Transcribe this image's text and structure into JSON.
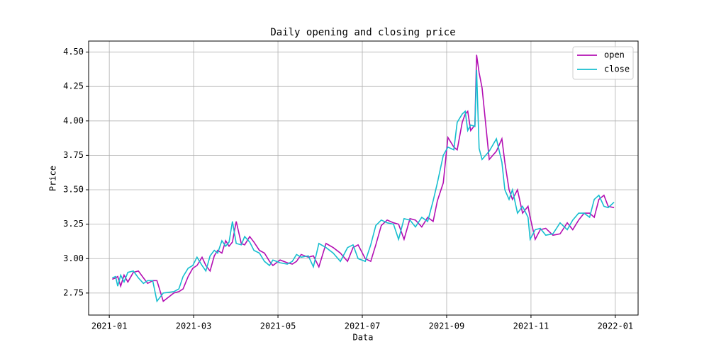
{
  "chart_data": {
    "type": "line",
    "title": "Daily opening and closing price",
    "xlabel": "Data",
    "ylabel": "Price",
    "x": [
      1.07,
      1.15,
      1.2,
      1.27,
      1.35,
      1.44,
      1.57,
      1.69,
      1.81,
      1.91,
      2.03,
      2.13,
      2.28,
      2.53,
      2.65,
      2.75,
      2.87,
      2.98,
      3.08,
      3.2,
      3.29,
      3.39,
      3.49,
      3.57,
      3.67,
      3.76,
      3.84,
      3.92,
      4.01,
      4.13,
      4.21,
      4.33,
      4.43,
      4.56,
      4.68,
      4.8,
      4.88,
      5.05,
      5.22,
      5.34,
      5.44,
      5.55,
      5.72,
      5.84,
      5.97,
      6.14,
      6.31,
      6.48,
      6.65,
      6.78,
      6.9,
      7.07,
      7.2,
      7.32,
      7.45,
      7.59,
      7.74,
      7.86,
      7.99,
      8.13,
      8.26,
      8.41,
      8.55,
      8.68,
      8.78,
      8.92,
      9.03,
      9.17,
      9.25,
      9.37,
      9.44,
      9.5,
      9.57,
      9.67,
      9.71,
      9.77,
      9.84,
      10.01,
      10.18,
      10.31,
      10.38,
      10.48,
      10.56,
      10.68,
      10.8,
      10.93,
      10.98,
      11.1,
      11.22,
      11.35,
      11.52,
      11.69,
      11.86,
      11.99,
      12.13,
      12.26,
      12.39,
      12.5,
      12.61,
      12.73,
      12.83,
      12.97
    ],
    "series": [
      {
        "name": "open",
        "color": "#b30fb3",
        "values": [
          2.85,
          2.86,
          2.87,
          2.8,
          2.88,
          2.83,
          2.9,
          2.91,
          2.86,
          2.82,
          2.84,
          2.84,
          2.69,
          2.75,
          2.76,
          2.78,
          2.87,
          2.93,
          2.95,
          3.01,
          2.95,
          2.91,
          3.02,
          3.06,
          3.04,
          3.13,
          3.09,
          3.12,
          3.27,
          3.11,
          3.1,
          3.16,
          3.12,
          3.06,
          3.04,
          2.98,
          2.95,
          2.99,
          2.97,
          2.96,
          2.98,
          3.03,
          3.01,
          3.02,
          2.94,
          3.11,
          3.08,
          3.04,
          2.98,
          3.08,
          3.1,
          3.0,
          2.98,
          3.1,
          3.24,
          3.28,
          3.26,
          3.25,
          3.14,
          3.29,
          3.28,
          3.23,
          3.3,
          3.27,
          3.42,
          3.55,
          3.88,
          3.81,
          3.79,
          3.99,
          4.05,
          4.07,
          3.93,
          3.97,
          4.48,
          4.35,
          4.24,
          3.72,
          3.78,
          3.87,
          3.7,
          3.5,
          3.43,
          3.5,
          3.33,
          3.38,
          3.3,
          3.14,
          3.21,
          3.22,
          3.17,
          3.18,
          3.26,
          3.21,
          3.28,
          3.33,
          3.33,
          3.3,
          3.43,
          3.46,
          3.38,
          3.37
        ]
      },
      {
        "name": "close",
        "color": "#17becf",
        "values": [
          2.86,
          2.87,
          2.8,
          2.88,
          2.83,
          2.9,
          2.91,
          2.86,
          2.82,
          2.84,
          2.84,
          2.69,
          2.75,
          2.76,
          2.78,
          2.87,
          2.93,
          2.95,
          3.01,
          2.95,
          2.91,
          3.02,
          3.06,
          3.04,
          3.13,
          3.09,
          3.12,
          3.27,
          3.11,
          3.1,
          3.16,
          3.12,
          3.06,
          3.04,
          2.98,
          2.95,
          2.99,
          2.97,
          2.96,
          2.98,
          3.03,
          3.01,
          3.02,
          2.94,
          3.11,
          3.08,
          3.04,
          2.98,
          3.08,
          3.1,
          3.0,
          2.98,
          3.1,
          3.24,
          3.28,
          3.26,
          3.25,
          3.14,
          3.29,
          3.28,
          3.23,
          3.3,
          3.27,
          3.42,
          3.55,
          3.75,
          3.81,
          3.79,
          3.99,
          4.05,
          4.07,
          3.93,
          3.97,
          3.96,
          4.37,
          3.8,
          3.72,
          3.78,
          3.87,
          3.7,
          3.5,
          3.43,
          3.5,
          3.33,
          3.38,
          3.3,
          3.14,
          3.21,
          3.22,
          3.17,
          3.18,
          3.26,
          3.21,
          3.28,
          3.33,
          3.33,
          3.3,
          3.43,
          3.46,
          3.38,
          3.37,
          3.41
        ]
      }
    ],
    "xlim": [
      0.51,
      13.54
    ],
    "xticks": [
      {
        "value": 1,
        "label": "2021-01"
      },
      {
        "value": 3,
        "label": "2021-03"
      },
      {
        "value": 5,
        "label": "2021-05"
      },
      {
        "value": 7,
        "label": "2021-07"
      },
      {
        "value": 9,
        "label": "2021-09"
      },
      {
        "value": 11,
        "label": "2021-11"
      },
      {
        "value": 13,
        "label": "2022-01"
      }
    ],
    "ylim": [
      2.59,
      4.58
    ],
    "yticks": [
      2.75,
      {
        "value": 3,
        "label": "3.00"
      },
      3.25,
      {
        "value": 3.5,
        "label": "3.50"
      },
      3.75,
      {
        "value": 4,
        "label": "4.00"
      },
      4.25,
      {
        "value": 4.5,
        "label": "4.50"
      }
    ],
    "grid": true,
    "legend": "upper right"
  }
}
